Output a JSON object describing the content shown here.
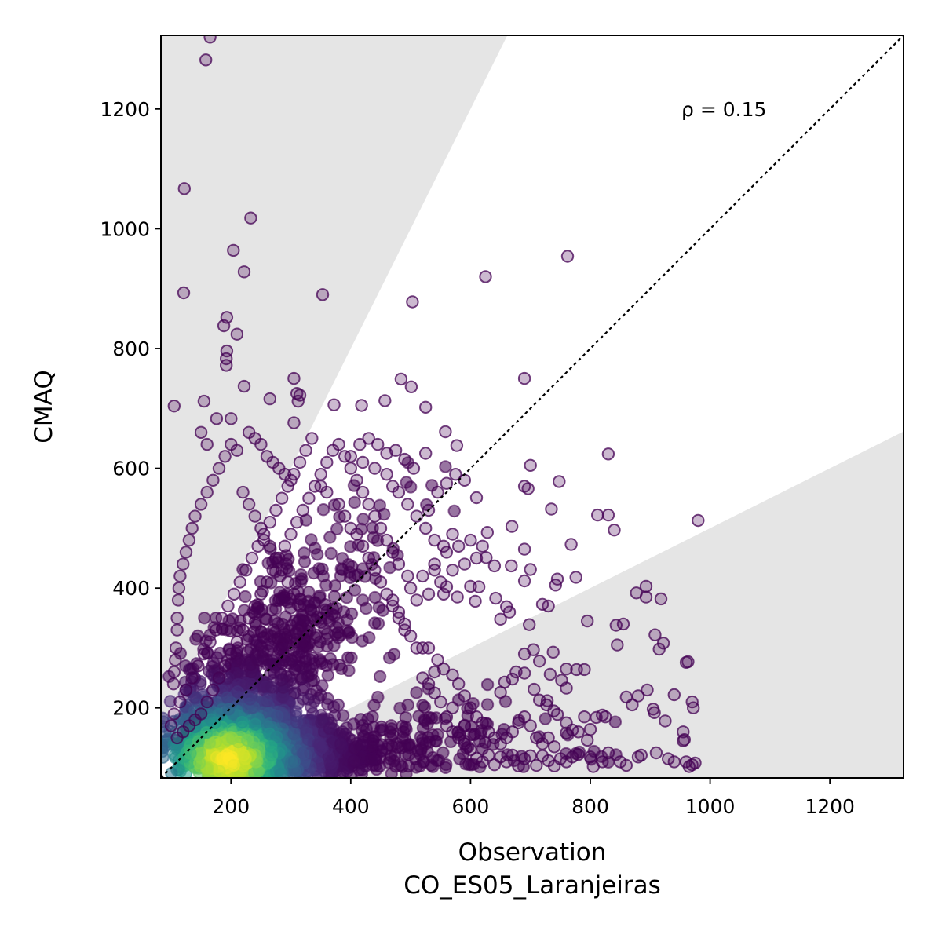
{
  "chart_data": {
    "type": "scatter",
    "title": "",
    "xlabel": "Observation",
    "xlabel_sub": "CO_ES05_Laranjeiras",
    "ylabel": "CMAQ",
    "xlim": [
      83,
      1323
    ],
    "ylim": [
      83,
      1323
    ],
    "xticks": [
      200,
      400,
      600,
      800,
      1000,
      1200
    ],
    "yticks": [
      200,
      400,
      600,
      800,
      1000,
      1200
    ],
    "grid": false,
    "legend": "none",
    "annotation": "ρ = 0.15",
    "reference_line": {
      "slope": 1,
      "style": "dotted",
      "color": "#000000"
    },
    "shaded_region": {
      "description": "outside factor-of-2 band",
      "lower_slope": 0.5,
      "upper_slope": 2,
      "color": "#e5e5e5"
    },
    "colormap": "viridis",
    "density_core": {
      "x_center": 195,
      "y_center": 115
    },
    "points": [
      [
        165,
        1320
      ],
      [
        158,
        1282
      ],
      [
        122,
        1067
      ],
      [
        233,
        1018
      ],
      [
        204,
        964
      ],
      [
        222,
        928
      ],
      [
        121,
        893
      ],
      [
        353,
        890
      ],
      [
        625,
        920
      ],
      [
        762,
        954
      ],
      [
        503,
        878
      ],
      [
        193,
        852
      ],
      [
        188,
        838
      ],
      [
        210,
        824
      ],
      [
        193,
        796
      ],
      [
        192,
        783
      ],
      [
        192,
        772
      ],
      [
        305,
        750
      ],
      [
        484,
        749
      ],
      [
        501,
        736
      ],
      [
        690,
        750
      ],
      [
        222,
        737
      ],
      [
        105,
        704
      ],
      [
        155,
        712
      ],
      [
        265,
        716
      ],
      [
        310,
        725
      ],
      [
        315,
        722
      ],
      [
        372,
        706
      ],
      [
        418,
        705
      ],
      [
        457,
        713
      ],
      [
        525,
        702
      ],
      [
        176,
        683
      ],
      [
        200,
        683
      ],
      [
        305,
        676
      ],
      [
        312,
        712
      ],
      [
        525,
        625
      ],
      [
        577,
        638
      ],
      [
        558,
        661
      ],
      [
        610,
        551
      ],
      [
        700,
        605
      ],
      [
        748,
        578
      ],
      [
        830,
        624
      ],
      [
        690,
        570
      ],
      [
        696,
        566
      ],
      [
        735,
        532
      ],
      [
        669,
        503
      ],
      [
        628,
        493
      ],
      [
        812,
        522
      ],
      [
        830,
        522
      ],
      [
        840,
        497
      ],
      [
        980,
        513
      ],
      [
        768,
        473
      ],
      [
        690,
        465
      ],
      [
        776,
        418
      ],
      [
        745,
        415
      ],
      [
        720,
        373
      ],
      [
        730,
        370
      ],
      [
        742,
        405
      ],
      [
        626,
        451
      ],
      [
        640,
        437
      ],
      [
        668,
        437
      ],
      [
        700,
        431
      ],
      [
        690,
        412
      ],
      [
        614,
        402
      ],
      [
        600,
        403
      ],
      [
        560,
        402
      ],
      [
        540,
        430
      ],
      [
        555,
        390
      ],
      [
        578,
        385
      ],
      [
        608,
        378
      ],
      [
        642,
        383
      ],
      [
        660,
        369
      ],
      [
        665,
        360
      ],
      [
        650,
        348
      ],
      [
        698,
        339
      ],
      [
        795,
        345
      ],
      [
        877,
        392
      ],
      [
        893,
        403
      ],
      [
        918,
        382
      ],
      [
        893,
        385
      ],
      [
        908,
        322
      ],
      [
        915,
        298
      ],
      [
        922,
        308
      ],
      [
        963,
        277
      ],
      [
        960,
        276
      ],
      [
        855,
        340
      ],
      [
        845,
        305
      ],
      [
        843,
        338
      ],
      [
        790,
        264
      ],
      [
        760,
        265
      ],
      [
        738,
        293
      ],
      [
        705,
        297
      ],
      [
        690,
        290
      ],
      [
        715,
        278
      ],
      [
        690,
        258
      ],
      [
        676,
        260
      ],
      [
        670,
        248
      ],
      [
        650,
        226
      ],
      [
        657,
        243
      ],
      [
        733,
        256
      ],
      [
        752,
        246
      ],
      [
        760,
        233
      ],
      [
        777,
        264
      ],
      [
        706,
        231
      ],
      [
        715,
        213
      ],
      [
        728,
        212
      ],
      [
        727,
        205
      ],
      [
        739,
        195
      ],
      [
        745,
        189
      ],
      [
        760,
        175
      ],
      [
        760,
        158
      ],
      [
        770,
        163
      ],
      [
        780,
        160
      ],
      [
        800,
        164
      ],
      [
        795,
        146
      ],
      [
        820,
        188
      ],
      [
        825,
        185
      ],
      [
        810,
        184
      ],
      [
        790,
        185
      ],
      [
        860,
        218
      ],
      [
        870,
        205
      ],
      [
        880,
        220
      ],
      [
        895,
        230
      ],
      [
        905,
        198
      ],
      [
        907,
        192
      ],
      [
        925,
        178
      ],
      [
        940,
        222
      ],
      [
        955,
        160
      ],
      [
        955,
        145
      ],
      [
        957,
        147
      ],
      [
        970,
        210
      ],
      [
        972,
        200
      ],
      [
        960,
        110
      ],
      [
        965,
        102
      ],
      [
        970,
        105
      ],
      [
        975,
        108
      ],
      [
        940,
        110
      ],
      [
        930,
        115
      ],
      [
        910,
        125
      ],
      [
        880,
        118
      ],
      [
        885,
        121
      ],
      [
        860,
        104
      ],
      [
        850,
        110
      ],
      [
        830,
        125
      ],
      [
        820,
        110
      ],
      [
        800,
        118
      ],
      [
        805,
        102
      ],
      [
        780,
        122
      ],
      [
        770,
        118
      ],
      [
        760,
        110
      ],
      [
        750,
        115
      ],
      [
        740,
        103
      ],
      [
        730,
        112
      ],
      [
        720,
        120
      ],
      [
        710,
        104
      ],
      [
        700,
        120
      ],
      [
        690,
        115
      ],
      [
        680,
        103
      ],
      [
        670,
        121
      ],
      [
        660,
        110
      ],
      [
        650,
        118
      ],
      [
        640,
        105
      ],
      [
        630,
        121
      ],
      [
        620,
        110
      ],
      [
        610,
        116
      ],
      [
        600,
        130
      ],
      [
        590,
        140
      ],
      [
        580,
        150
      ],
      [
        570,
        160
      ],
      [
        560,
        170
      ],
      [
        560,
        185
      ],
      [
        570,
        200
      ],
      [
        550,
        210
      ],
      [
        540,
        225
      ],
      [
        530,
        240
      ],
      [
        520,
        250
      ],
      [
        540,
        260
      ],
      [
        555,
        265
      ],
      [
        570,
        255
      ],
      [
        580,
        240
      ],
      [
        590,
        220
      ],
      [
        600,
        200
      ],
      [
        610,
        185
      ],
      [
        620,
        175
      ],
      [
        630,
        160
      ],
      [
        640,
        150
      ],
      [
        650,
        140
      ],
      [
        660,
        150
      ],
      [
        670,
        160
      ],
      [
        680,
        175
      ],
      [
        690,
        185
      ],
      [
        700,
        170
      ],
      [
        710,
        150
      ],
      [
        720,
        140
      ],
      [
        730,
        150
      ],
      [
        740,
        135
      ],
      [
        590,
        170
      ],
      [
        600,
        155
      ],
      [
        520,
        300
      ],
      [
        530,
        300
      ],
      [
        545,
        280
      ],
      [
        510,
        300
      ],
      [
        500,
        320
      ],
      [
        490,
        340
      ],
      [
        480,
        360
      ],
      [
        470,
        380
      ],
      [
        500,
        400
      ],
      [
        520,
        420
      ],
      [
        540,
        440
      ],
      [
        560,
        460
      ],
      [
        580,
        470
      ],
      [
        600,
        480
      ],
      [
        620,
        470
      ],
      [
        610,
        450
      ],
      [
        590,
        440
      ],
      [
        570,
        430
      ],
      [
        550,
        410
      ],
      [
        530,
        390
      ],
      [
        510,
        380
      ],
      [
        495,
        420
      ],
      [
        480,
        440
      ],
      [
        470,
        460
      ],
      [
        460,
        480
      ],
      [
        450,
        500
      ],
      [
        440,
        520
      ],
      [
        430,
        540
      ],
      [
        420,
        560
      ],
      [
        410,
        580
      ],
      [
        400,
        600
      ],
      [
        390,
        620
      ],
      [
        380,
        640
      ],
      [
        370,
        630
      ],
      [
        360,
        610
      ],
      [
        350,
        590
      ],
      [
        340,
        570
      ],
      [
        330,
        550
      ],
      [
        320,
        530
      ],
      [
        310,
        510
      ],
      [
        300,
        490
      ],
      [
        290,
        470
      ],
      [
        280,
        450
      ],
      [
        270,
        430
      ],
      [
        260,
        410
      ],
      [
        250,
        390
      ],
      [
        240,
        370
      ],
      [
        230,
        350
      ],
      [
        220,
        330
      ],
      [
        210,
        310
      ],
      [
        200,
        290
      ],
      [
        190,
        270
      ],
      [
        180,
        250
      ],
      [
        170,
        230
      ],
      [
        160,
        210
      ],
      [
        150,
        190
      ],
      [
        140,
        180
      ],
      [
        130,
        170
      ],
      [
        120,
        160
      ],
      [
        110,
        150
      ],
      [
        100,
        170
      ],
      [
        105,
        190
      ],
      [
        115,
        210
      ],
      [
        125,
        230
      ],
      [
        135,
        250
      ],
      [
        145,
        270
      ],
      [
        155,
        290
      ],
      [
        165,
        310
      ],
      [
        175,
        330
      ],
      [
        185,
        350
      ],
      [
        195,
        370
      ],
      [
        205,
        390
      ],
      [
        215,
        410
      ],
      [
        225,
        430
      ],
      [
        235,
        450
      ],
      [
        245,
        470
      ],
      [
        255,
        490
      ],
      [
        265,
        510
      ],
      [
        275,
        530
      ],
      [
        285,
        550
      ],
      [
        295,
        570
      ],
      [
        305,
        590
      ],
      [
        315,
        610
      ],
      [
        325,
        630
      ],
      [
        335,
        650
      ],
      [
        200,
        640
      ],
      [
        210,
        630
      ],
      [
        190,
        620
      ],
      [
        180,
        600
      ],
      [
        170,
        580
      ],
      [
        160,
        560
      ],
      [
        150,
        540
      ],
      [
        140,
        520
      ],
      [
        135,
        500
      ],
      [
        130,
        480
      ],
      [
        125,
        460
      ],
      [
        120,
        440
      ],
      [
        115,
        420
      ],
      [
        113,
        400
      ],
      [
        112,
        380
      ],
      [
        110,
        350
      ],
      [
        110,
        330
      ],
      [
        108,
        300
      ],
      [
        107,
        280
      ],
      [
        105,
        260
      ],
      [
        104,
        240
      ],
      [
        150,
        660
      ],
      [
        160,
        640
      ],
      [
        230,
        660
      ],
      [
        240,
        650
      ],
      [
        250,
        640
      ],
      [
        260,
        620
      ],
      [
        270,
        610
      ],
      [
        280,
        600
      ],
      [
        290,
        590
      ],
      [
        300,
        580
      ],
      [
        350,
        570
      ],
      [
        360,
        560
      ],
      [
        380,
        540
      ],
      [
        390,
        520
      ],
      [
        400,
        500
      ],
      [
        410,
        490
      ],
      [
        420,
        470
      ],
      [
        430,
        450
      ],
      [
        440,
        430
      ],
      [
        450,
        410
      ],
      [
        460,
        390
      ],
      [
        470,
        370
      ],
      [
        480,
        350
      ],
      [
        490,
        330
      ],
      [
        400,
        620
      ],
      [
        420,
        610
      ],
      [
        440,
        600
      ],
      [
        460,
        590
      ],
      [
        470,
        570
      ],
      [
        480,
        560
      ],
      [
        495,
        540
      ],
      [
        510,
        520
      ],
      [
        525,
        500
      ],
      [
        540,
        480
      ],
      [
        555,
        470
      ],
      [
        570,
        490
      ],
      [
        530,
        530
      ],
      [
        545,
        560
      ],
      [
        560,
        575
      ],
      [
        575,
        590
      ],
      [
        590,
        580
      ],
      [
        505,
        600
      ],
      [
        490,
        615
      ],
      [
        475,
        630
      ],
      [
        460,
        625
      ],
      [
        445,
        640
      ],
      [
        430,
        650
      ],
      [
        415,
        640
      ],
      [
        220,
        560
      ],
      [
        230,
        540
      ],
      [
        240,
        520
      ],
      [
        250,
        500
      ],
      [
        255,
        480
      ],
      [
        265,
        470
      ],
      [
        275,
        450
      ],
      [
        285,
        430
      ],
      [
        295,
        410
      ],
      [
        305,
        390
      ],
      [
        315,
        370
      ]
    ],
    "density_points": "generated from density model around core (x≈195, y≈115) spreading along the 1:1 line"
  }
}
